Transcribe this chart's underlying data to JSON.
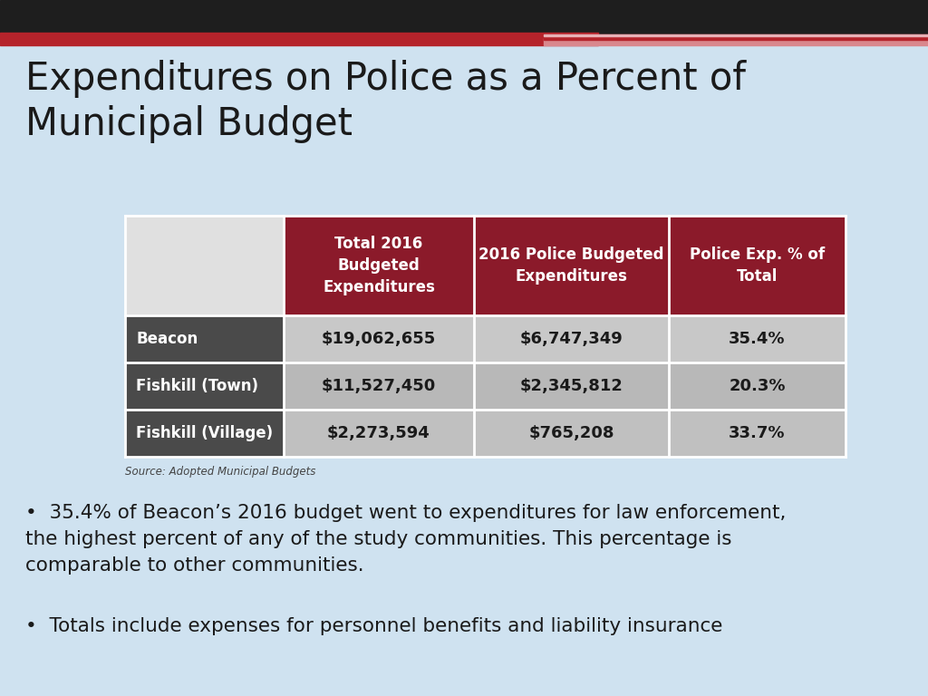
{
  "title": "Expenditures on Police as a Percent of\nMunicipal Budget",
  "bg_color": "#cfe2f0",
  "header_bg": "#8b1a2a",
  "header_text_color": "#ffffff",
  "row_label_bg": "#4a4a4a",
  "row_label_text": "#ffffff",
  "col_headers": [
    "Total 2016\nBudgeted\nExpenditures",
    "2016 Police Budgeted\nExpenditures",
    "Police Exp. % of\nTotal"
  ],
  "row_labels": [
    "Beacon",
    "Fishkill (Town)",
    "Fishkill (Village)"
  ],
  "data": [
    [
      "$19,062,655",
      "$6,747,349",
      "35.4%"
    ],
    [
      "$11,527,450",
      "$2,345,812",
      "20.3%"
    ],
    [
      "$2,273,594",
      "$765,208",
      "33.7%"
    ]
  ],
  "row_colors": [
    "#c8c8c8",
    "#b8b8b8",
    "#c0c0c0"
  ],
  "source_text": "Source: Adopted Municipal Budgets",
  "bullet1_prefix": "•",
  "bullet1_text": "  35.4% of Beacon’s 2016 budget went to expenditures for law enforcement,\nthe highest percent of any of the study communities. This percentage is\ncomparable to other communities.",
  "bullet2_prefix": "•",
  "bullet2_text": "  Totals include expenses for personnel benefits and liability insurance",
  "top_bar_dark": "#1e1e1e",
  "top_bar_red": "#b5232b",
  "top_bar_pink": "#d9888e",
  "top_bar_light": "#e8b0b5",
  "table_border_color": "#ffffff",
  "title_color": "#1a1a1a",
  "bullet_color": "#1a1a1a",
  "header_top_cell_color": "#e0e0e0",
  "data_text_color": "#1a1a1a"
}
